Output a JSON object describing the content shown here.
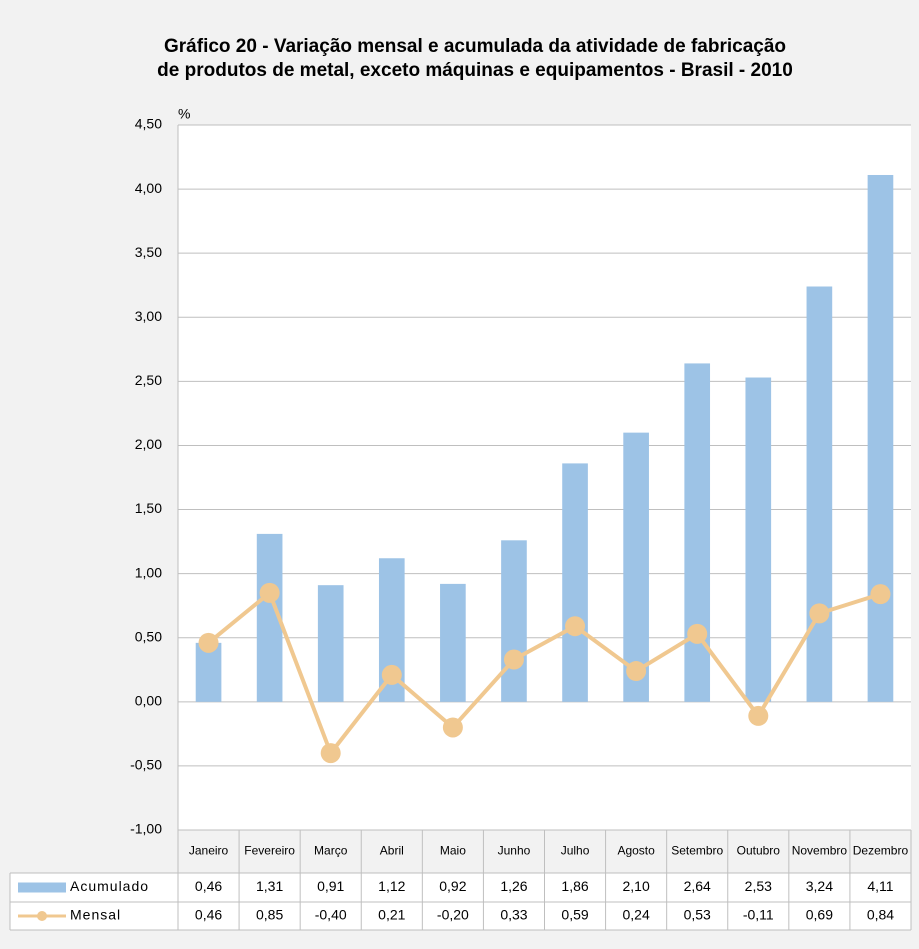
{
  "chart_data": {
    "type": "bar_line_table",
    "title": "Gráfico 20 - Variação mensal e acumulada da atividade de fabricação",
    "subtitle": "de produtos de metal, exceto máquinas e equipamentos - Brasil - 2010",
    "y_label": "%",
    "categories": [
      "Janeiro",
      "Fevereiro",
      "Março",
      "Abril",
      "Maio",
      "Junho",
      "Julho",
      "Agosto",
      "Setembro",
      "Outubro",
      "Novembro",
      "Dezembro"
    ],
    "series": [
      {
        "name": "Acumulado",
        "type": "bar",
        "color": "#9dc3e6",
        "values": [
          0.46,
          1.31,
          0.91,
          1.12,
          0.92,
          1.26,
          1.86,
          2.1,
          2.64,
          2.53,
          3.24,
          4.11
        ],
        "value_labels": [
          "0,46",
          "1,31",
          "0,91",
          "1,12",
          "0,92",
          "1,26",
          "1,86",
          "2,10",
          "2,64",
          "2,53",
          "3,24",
          "4,11"
        ]
      },
      {
        "name": "Mensal",
        "type": "line",
        "color": "#f0c890",
        "values": [
          0.46,
          0.85,
          -0.4,
          0.21,
          -0.2,
          0.33,
          0.59,
          0.24,
          0.53,
          -0.11,
          0.69,
          0.84
        ],
        "value_labels": [
          "0,46",
          "0,85",
          "-0,40",
          "0,21",
          "-0,20",
          "0,33",
          "0,59",
          "0,24",
          "0,53",
          "-0,11",
          "0,69",
          "0,84"
        ]
      }
    ],
    "ylim": [
      -1.0,
      4.5
    ],
    "yticks": [
      {
        "value": -1.0,
        "label": "-1,00"
      },
      {
        "value": -0.5,
        "label": "-0,50"
      },
      {
        "value": 0,
        "label": "0,00"
      },
      {
        "value": 0.5,
        "label": "0,50"
      },
      {
        "value": 1.0,
        "label": "1,00"
      },
      {
        "value": 1.5,
        "label": "1,50"
      },
      {
        "value": 2.0,
        "label": "2,00"
      },
      {
        "value": 2.5,
        "label": "2,50"
      },
      {
        "value": 3.0,
        "label": "3,00"
      },
      {
        "value": 3.5,
        "label": "3,50"
      },
      {
        "value": 4.0,
        "label": "4,00"
      },
      {
        "value": 4.5,
        "label": "4,50"
      }
    ],
    "grid": true
  }
}
